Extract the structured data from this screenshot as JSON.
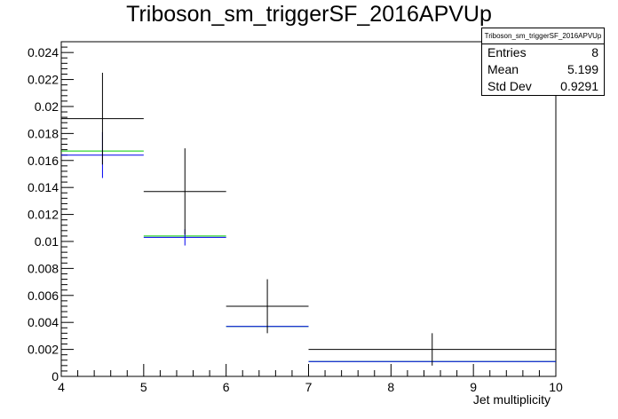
{
  "chart_data": {
    "type": "histogram",
    "title": "Triboson_sm_triggerSF_2016APVUp",
    "xlabel": "Jet multiplicity",
    "ylabel": "",
    "xlim": [
      4,
      10
    ],
    "ylim": [
      0,
      0.0248
    ],
    "x_ticks": [
      4,
      5,
      6,
      7,
      8,
      9,
      10
    ],
    "y_ticks": [
      0,
      0.002,
      0.004,
      0.006,
      0.008,
      0.01,
      0.012,
      0.014,
      0.016,
      0.018,
      0.02,
      0.022,
      0.024
    ],
    "y_tick_labels": [
      "0",
      "0.002",
      "0.004",
      "0.006",
      "0.008",
      "0.01",
      "0.012",
      "0.014",
      "0.016",
      "0.018",
      "0.02",
      "0.022",
      "0.024"
    ],
    "series": [
      {
        "color": "#000000",
        "style": "errorbars",
        "bins": [
          {
            "xlo": 4,
            "xhi": 5,
            "y": 0.0191,
            "err": 0.0034
          },
          {
            "xlo": 5,
            "xhi": 6,
            "y": 0.0137,
            "err": 0.0032
          },
          {
            "xlo": 6,
            "xhi": 7,
            "y": 0.0052,
            "err": 0.002
          },
          {
            "xlo": 7,
            "xhi": 10,
            "y": 0.002,
            "err": 0.0012
          }
        ]
      },
      {
        "color": "#00cc00",
        "style": "hist",
        "bins": [
          {
            "xlo": 4,
            "xhi": 5,
            "y": 0.0167
          },
          {
            "xlo": 5,
            "xhi": 6,
            "y": 0.0104
          },
          {
            "xlo": 6,
            "xhi": 7,
            "y": 0.0037
          },
          {
            "xlo": 7,
            "xhi": 10,
            "y": 0.0011
          }
        ]
      },
      {
        "color": "#0000ee",
        "style": "errorbars",
        "bins": [
          {
            "xlo": 4,
            "xhi": 5,
            "y": 0.0164,
            "err": 0.0017
          },
          {
            "xlo": 5,
            "xhi": 6,
            "y": 0.0103,
            "err": 0.0006
          },
          {
            "xlo": 6,
            "xhi": 7,
            "y": 0.0037,
            "err": 0.0
          },
          {
            "xlo": 7,
            "xhi": 10,
            "y": 0.0011,
            "err": 0.0
          }
        ]
      }
    ],
    "stats_box": {
      "title": "Triboson_sm_triggerSF_2016APVUp",
      "entries_label": "Entries",
      "entries_value": "8",
      "mean_label": "Mean",
      "mean_value": "5.199",
      "stddev_label": "Std Dev",
      "stddev_value": "0.9291"
    }
  }
}
